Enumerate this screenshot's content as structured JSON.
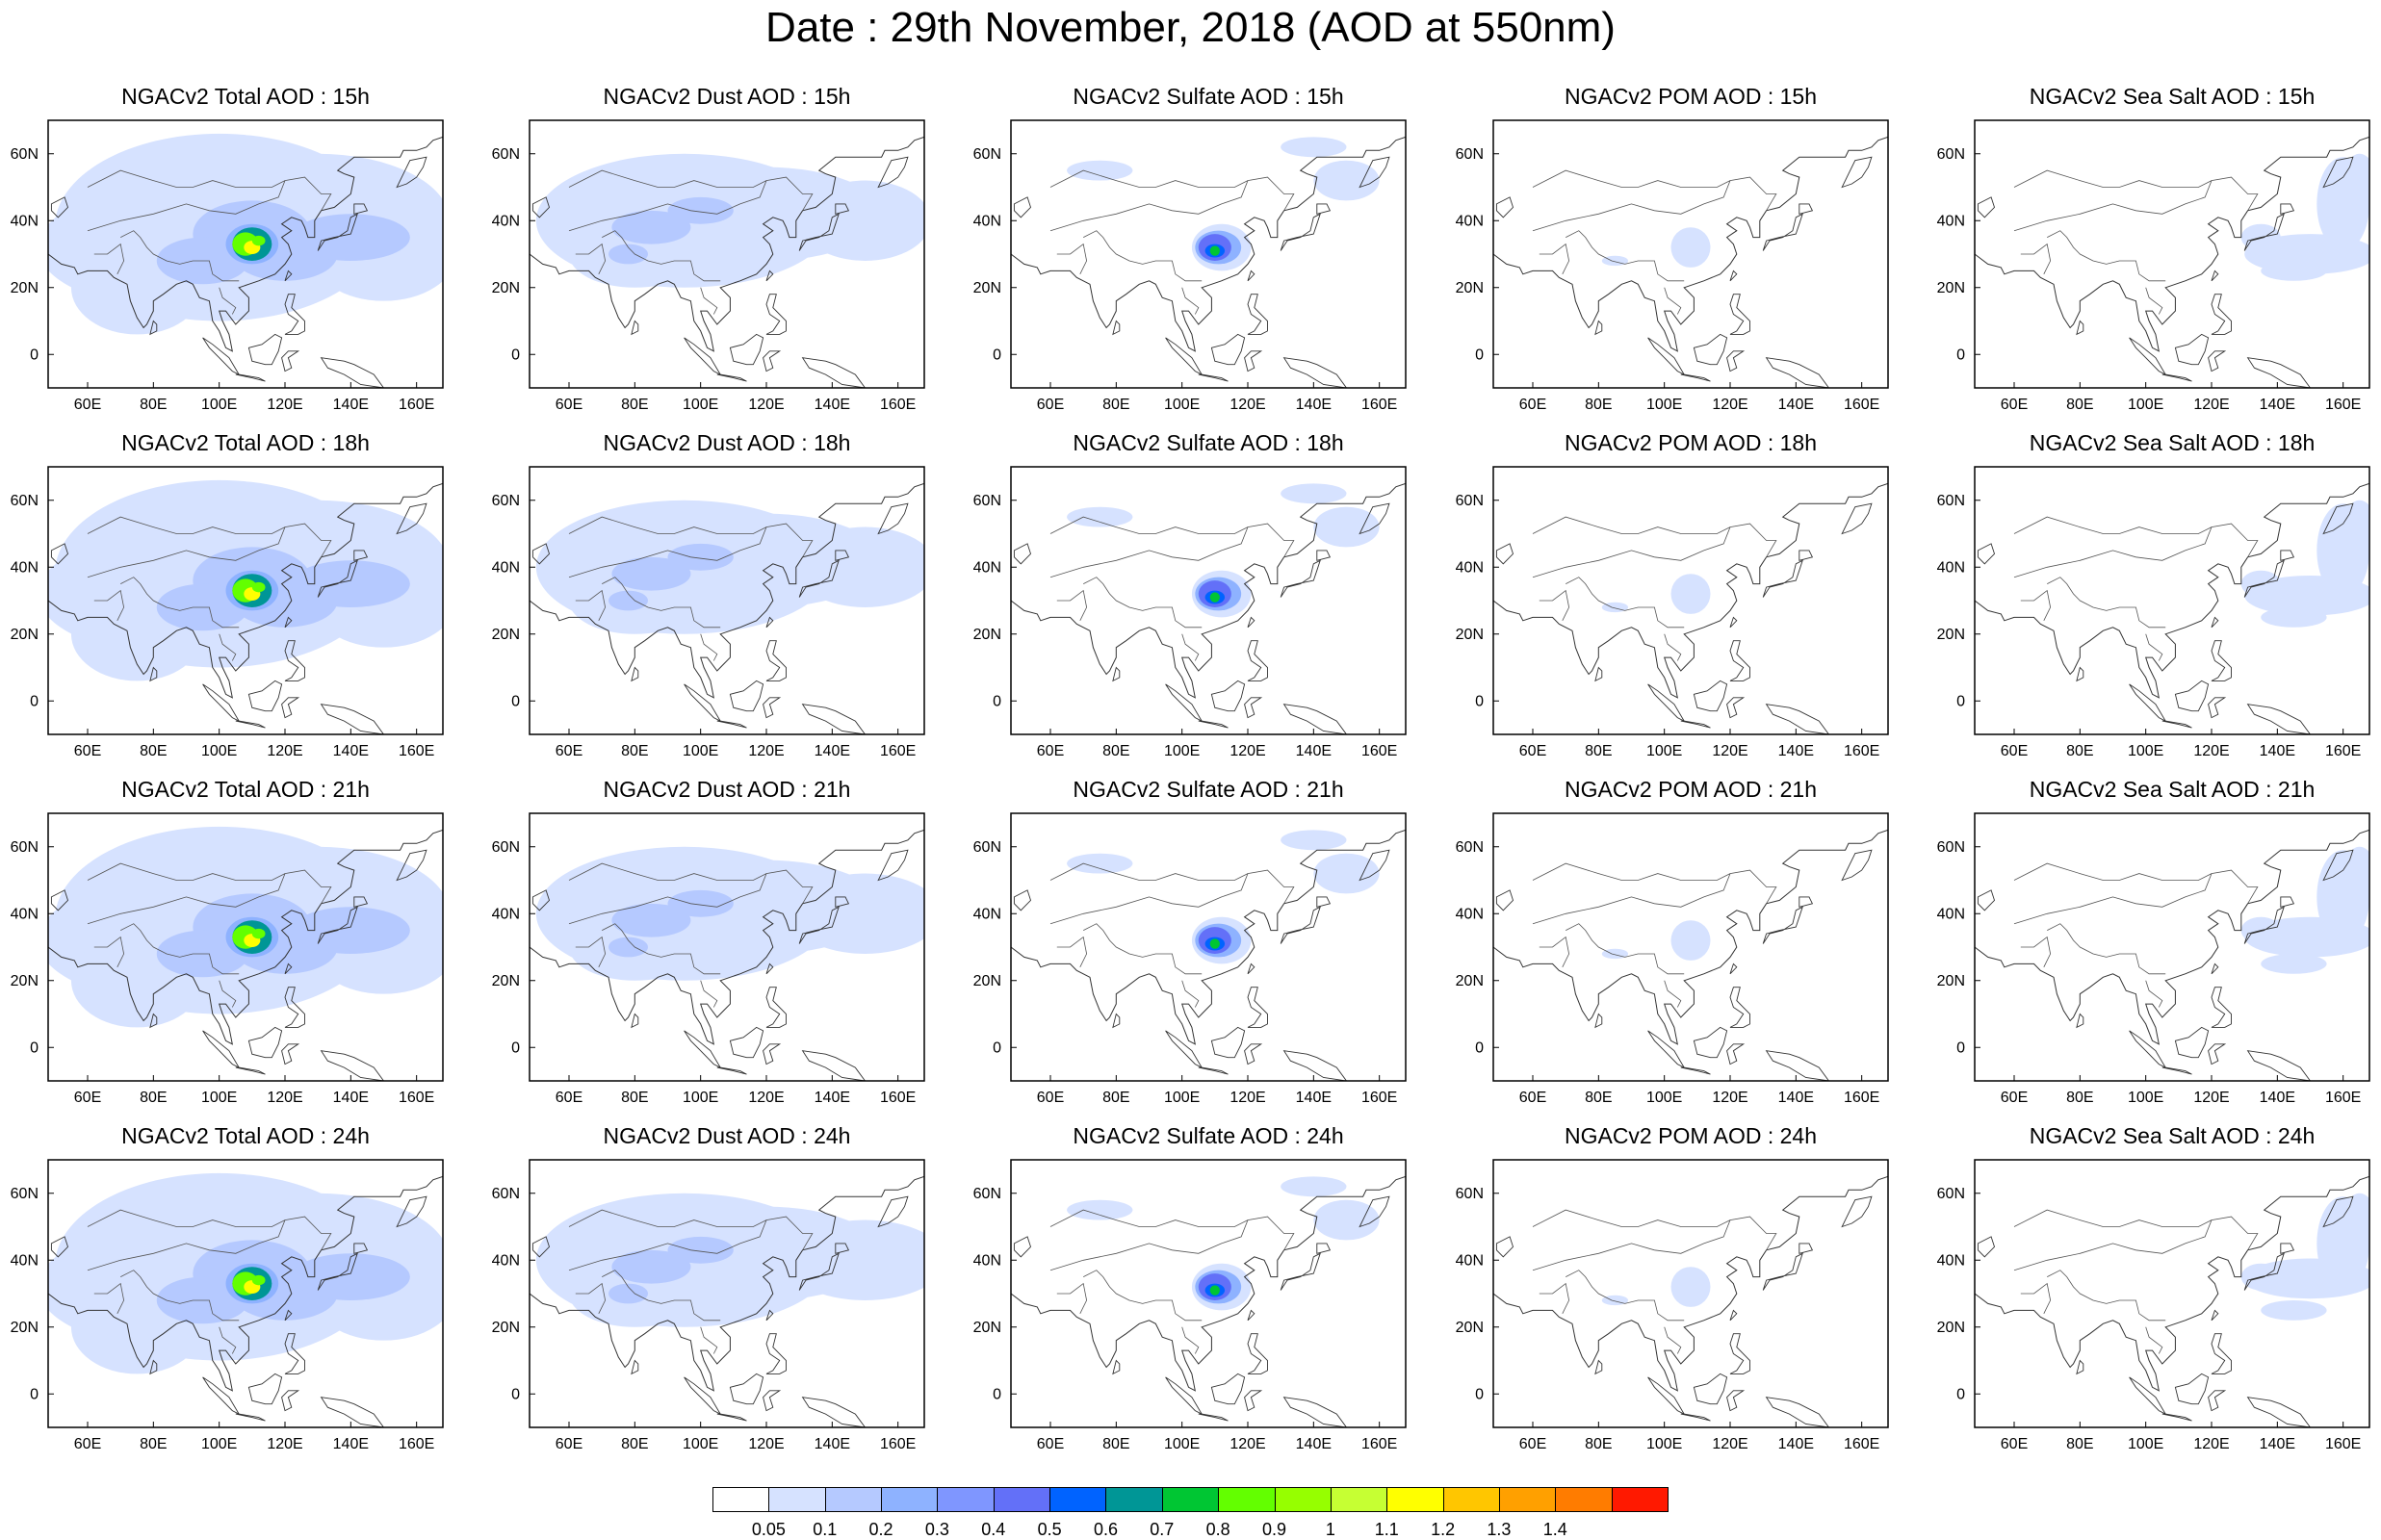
{
  "title": "Date : 29th November, 2018 (AOD at 550nm)",
  "species": [
    "Total AOD",
    "Dust AOD",
    "Sulfate AOD",
    "POM AOD",
    "Sea Salt AOD"
  ],
  "hours": [
    "15h",
    "18h",
    "21h",
    "24h"
  ],
  "panel_titles": [
    [
      "NGACv2 Total AOD : 15h",
      "NGACv2 Dust AOD : 15h",
      "NGACv2 Sulfate AOD : 15h",
      "NGACv2 POM AOD : 15h",
      "NGACv2 Sea Salt AOD : 15h"
    ],
    [
      "NGACv2 Total AOD : 18h",
      "NGACv2 Dust AOD : 18h",
      "NGACv2 Sulfate AOD : 18h",
      "NGACv2 POM AOD : 18h",
      "NGACv2 Sea Salt AOD : 18h"
    ],
    [
      "NGACv2 Total AOD : 21h",
      "NGACv2 Dust AOD : 21h",
      "NGACv2 Sulfate AOD : 21h",
      "NGACv2 POM AOD : 21h",
      "NGACv2 Sea Salt AOD : 21h"
    ],
    [
      "NGACv2 Total AOD : 24h",
      "NGACv2 Dust AOD : 24h",
      "NGACv2 Sulfate AOD : 24h",
      "NGACv2 POM AOD : 24h",
      "NGACv2 Sea Salt  AOD : 24h"
    ]
  ],
  "map": {
    "lon_range": [
      48,
      168
    ],
    "lat_range": [
      -10,
      70
    ],
    "lon_ticks": [
      "60E",
      "80E",
      "100E",
      "120E",
      "140E",
      "160E"
    ],
    "lon_tick_values": [
      60,
      80,
      100,
      120,
      140,
      160
    ],
    "lat_ticks": [
      "0",
      "20N",
      "40N",
      "60N"
    ],
    "lat_tick_values": [
      0,
      20,
      40,
      60
    ]
  },
  "colorbar": {
    "labels": [
      "0.05",
      "0.1",
      "0.2",
      "0.3",
      "0.4",
      "0.5",
      "0.6",
      "0.7",
      "0.8",
      "0.9",
      "1",
      "1.1",
      "1.2",
      "1.3",
      "1.4"
    ],
    "colors": [
      "#ffffff",
      "#d6e2ff",
      "#b5c9ff",
      "#8eb2ff",
      "#7f96ff",
      "#6370f8",
      "#0063ff",
      "#009696",
      "#00c633",
      "#63ff00",
      "#96ff00",
      "#c6ff33",
      "#ffff00",
      "#ffc600",
      "#ffa000",
      "#ff7c00",
      "#ff1900"
    ]
  }
}
